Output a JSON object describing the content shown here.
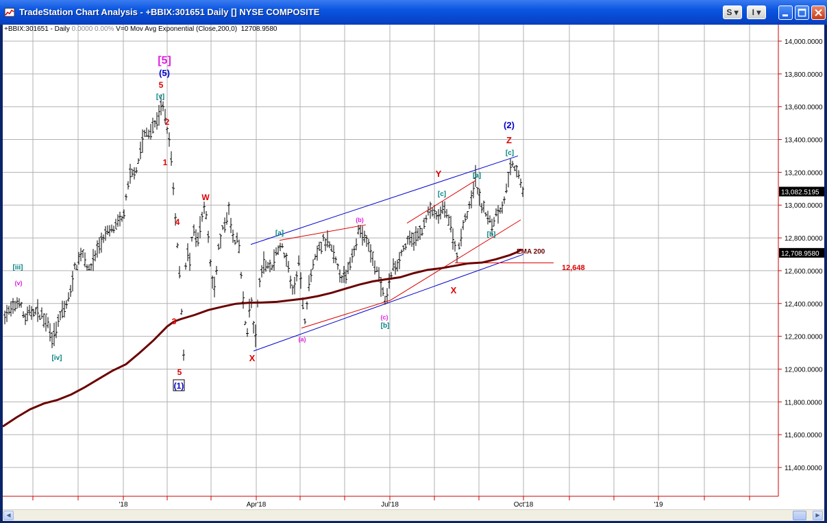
{
  "window": {
    "title": "TradeStation Chart Analysis - +BBIX:301651 Daily [] NYSE COMPOSITE",
    "buttons": {
      "s_label": "S",
      "i_label": "I"
    }
  },
  "header": {
    "symbol": "+BBIX:301651 - Daily",
    "change": "0.0000  0.00%",
    "volume": "V=0",
    "indicator": "Mov Avg Exponential (Close,200,0)",
    "indicator_value": "12708.9580"
  },
  "chart_data": {
    "type": "bar",
    "title": "",
    "ylim": [
      11200,
      14150
    ],
    "y_ticks": [
      "14,000.0000",
      "13,800.0000",
      "13,600.0000",
      "13,400.0000",
      "13,200.0000",
      "13,000.0000",
      "12,800.0000",
      "12,600.0000",
      "12,400.0000",
      "12,200.0000",
      "12,000.0000",
      "11,800.0000",
      "11,600.0000",
      "11,400.0000"
    ],
    "y_tick_values": [
      14000,
      13800,
      13600,
      13400,
      13200,
      13000,
      12800,
      12600,
      12400,
      12200,
      12000,
      11800,
      11600,
      11400
    ],
    "x_labels": [
      "'18",
      "Apr'18",
      "Jul'18",
      "Oct'18",
      "'19"
    ],
    "last_price_label": "13,082.5195",
    "last_price": 13082.5195,
    "ema_price_label": "12,708.9580",
    "ema_price": 12708.958,
    "colors": {
      "bars": "#000000",
      "ema": "#6b0000",
      "channel": "#0000cc",
      "trend": "#dd0000",
      "last": "#000000",
      "ema_tag": "#000000"
    },
    "series": [
      {
        "name": "EMA 200",
        "x": [
          0,
          20,
          40,
          60,
          80,
          100,
          120,
          140,
          160,
          180,
          200,
          220,
          240,
          250,
          260,
          280,
          300,
          320,
          340,
          360,
          380,
          400,
          420,
          440,
          460,
          480,
          500,
          520,
          540,
          560,
          580,
          600,
          620,
          640,
          660,
          680,
          700,
          720,
          740,
          750,
          757
        ],
        "values": [
          11650,
          11705,
          11755,
          11790,
          11812,
          11845,
          11890,
          11940,
          11990,
          12030,
          12100,
          12175,
          12260,
          12290,
          12305,
          12330,
          12360,
          12380,
          12398,
          12405,
          12406,
          12410,
          12420,
          12430,
          12445,
          12465,
          12490,
          12515,
          12535,
          12548,
          12560,
          12585,
          12605,
          12615,
          12630,
          12645,
          12650,
          12670,
          12695,
          12712,
          12730
        ]
      }
    ],
    "annotations": [
      {
        "text": "[5]",
        "color": "#e020e0"
      },
      {
        "text": "(5)",
        "color": "#0000cc"
      },
      {
        "text": "5",
        "color": "#dd0000"
      },
      {
        "text": "[v]",
        "color": "#008080"
      },
      {
        "text": "2",
        "color": "#dd0000"
      },
      {
        "text": "1",
        "color": "#dd0000"
      },
      {
        "text": "W",
        "color": "#dd0000"
      },
      {
        "text": "4",
        "color": "#dd0000"
      },
      {
        "text": "3",
        "color": "#dd0000"
      },
      {
        "text": "5",
        "color": "#dd0000"
      },
      {
        "text": "(1)",
        "color": "#0000cc"
      },
      {
        "text": "[iii]",
        "color": "#008080"
      },
      {
        "text": "(v)",
        "color": "#e020e0"
      },
      {
        "text": "[iv]",
        "color": "#008080"
      },
      {
        "text": "X",
        "color": "#dd0000"
      },
      {
        "text": "[a]",
        "color": "#008080"
      },
      {
        "text": "(a)",
        "color": "#e020e0"
      },
      {
        "text": "(b)",
        "color": "#e020e0"
      },
      {
        "text": "(c)",
        "color": "#e020e0"
      },
      {
        "text": "[b]",
        "color": "#008080"
      },
      {
        "text": "Y",
        "color": "#dd0000"
      },
      {
        "text": "[c]",
        "color": "#008080"
      },
      {
        "text": "[a]",
        "color": "#008080"
      },
      {
        "text": "X",
        "color": "#dd0000"
      },
      {
        "text": "[b]",
        "color": "#008080"
      },
      {
        "text": "(2)",
        "color": "#0000cc"
      },
      {
        "text": "Z",
        "color": "#dd0000"
      },
      {
        "text": "[c]",
        "color": "#008080"
      },
      {
        "text": "EMA 200",
        "color": "#6b0000"
      },
      {
        "text": "12,648",
        "color": "#dd0000"
      }
    ]
  }
}
